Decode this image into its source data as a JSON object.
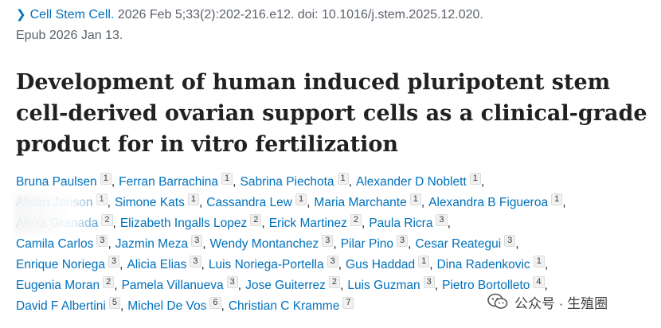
{
  "citation": {
    "journal": "Cell Stem Cell.",
    "details": "2026 Feb 5;33(2):202-216.e12. doi: 10.1016/j.stem.2025.12.020.",
    "epub": "Epub 2026 Jan 13."
  },
  "title": "Development of human induced pluripotent stem cell-derived ovarian support cells as a clinical-grade product for in vitro fertilization",
  "author_lines": [
    [
      {
        "name": "Bruna Paulsen",
        "aff": "1"
      },
      {
        "name": "Ferran Barrachina",
        "aff": "1"
      },
      {
        "name": "Sabrina Piechota",
        "aff": "1"
      },
      {
        "name": "Alexander D Noblett",
        "aff": "1"
      }
    ],
    [
      {
        "name": "Alison Jonson",
        "aff": "1"
      },
      {
        "name": "Simone Kats",
        "aff": "1"
      },
      {
        "name": "Cassandra Lew",
        "aff": "1"
      },
      {
        "name": "Maria Marchante",
        "aff": "1"
      },
      {
        "name": "Alexandra B Figueroa",
        "aff": "1"
      }
    ],
    [
      {
        "name": "Alexa Granada",
        "aff": "2"
      },
      {
        "name": "Elizabeth Ingalls Lopez",
        "aff": "2"
      },
      {
        "name": "Erick Martinez",
        "aff": "2"
      },
      {
        "name": "Paula Ricra",
        "aff": "3"
      }
    ],
    [
      {
        "name": "Camila Carlos",
        "aff": "3"
      },
      {
        "name": "Jazmin Meza",
        "aff": "3"
      },
      {
        "name": "Wendy Montanchez",
        "aff": "3"
      },
      {
        "name": "Pilar Pino",
        "aff": "3"
      },
      {
        "name": "Cesar Reategui",
        "aff": "3"
      }
    ],
    [
      {
        "name": "Enrique Noriega",
        "aff": "3"
      },
      {
        "name": "Alicia Elias",
        "aff": "3"
      },
      {
        "name": "Luis Noriega-Portella",
        "aff": "3"
      },
      {
        "name": "Gus Haddad",
        "aff": "1"
      },
      {
        "name": "Dina Radenkovic",
        "aff": "1"
      }
    ],
    [
      {
        "name": "Eugenia Moran",
        "aff": "2"
      },
      {
        "name": "Pamela Villanueva",
        "aff": "3"
      },
      {
        "name": "Jose Guiterrez",
        "aff": "2"
      },
      {
        "name": "Luis Guzman",
        "aff": "3"
      },
      {
        "name": "Pietro Bortolleto",
        "aff": "4"
      }
    ],
    [
      {
        "name": "David F Albertini",
        "aff": "5"
      },
      {
        "name": "Michel De Vos",
        "aff": "6"
      },
      {
        "name": "Christian C Kramme",
        "aff": "7"
      }
    ]
  ],
  "watermark": {
    "text": "公众号 · 生殖圈",
    "icon": "wechat-icon"
  }
}
